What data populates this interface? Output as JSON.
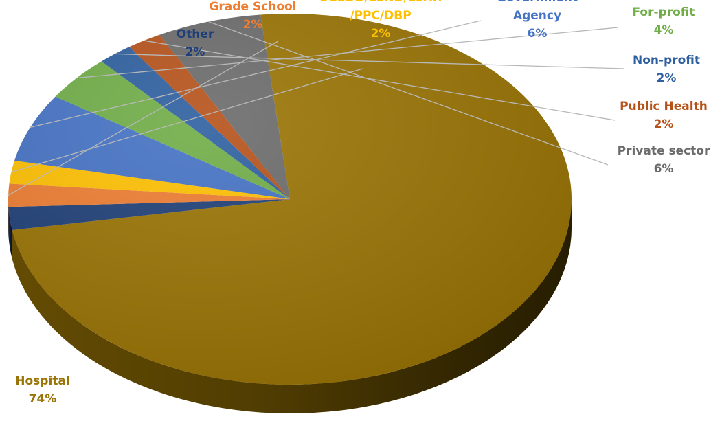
{
  "chart_data": {
    "type": "pie",
    "style": "3d",
    "slices": [
      {
        "label": "Hospital",
        "label_lines": [
          "Hospital"
        ],
        "value_label": "74%",
        "value": 74,
        "color": "#9a7404",
        "label_color": "#9a7404"
      },
      {
        "label": "Other",
        "label_lines": [
          "Other"
        ],
        "value_label": "2%",
        "value": 2,
        "color": "#1f3f78",
        "label_color": "#1f3f78"
      },
      {
        "label": "Grade School",
        "label_lines": [
          "Grade School"
        ],
        "value_label": "2%",
        "value": 2,
        "color": "#ed7d31",
        "label_color": "#ed7d31"
      },
      {
        "label": "UCEDD/LEND/LEAH/PPC/DBP",
        "label_lines": [
          "UCEDD/LEND/LEAH",
          "/PPC/DBP"
        ],
        "value_label": "2%",
        "value": 2,
        "color": "#ffc000",
        "label_color": "#ffc000"
      },
      {
        "label": "Government Agency",
        "label_lines": [
          "Government",
          "Agency"
        ],
        "value_label": "6%",
        "value": 6,
        "color": "#4472c4",
        "label_color": "#4472c4"
      },
      {
        "label": "For-profit",
        "label_lines": [
          "For-profit"
        ],
        "value_label": "4%",
        "value": 4,
        "color": "#70ad47",
        "label_color": "#70ad47"
      },
      {
        "label": "Non-profit",
        "label_lines": [
          "Non-profit"
        ],
        "value_label": "2%",
        "value": 2,
        "color": "#2e5fa0",
        "label_color": "#2e5fa0"
      },
      {
        "label": "Public Health",
        "label_lines": [
          "Public Health"
        ],
        "value_label": "2%",
        "value": 2,
        "color": "#b5521a",
        "label_color": "#b5521a"
      },
      {
        "label": "Private sector",
        "label_lines": [
          "Private sector"
        ],
        "value_label": "6%",
        "value": 6,
        "color": "#6b6b6b",
        "label_color": "#6b6b6b"
      }
    ],
    "legend": "none",
    "data_labels": "outside-with-leader-lines"
  }
}
